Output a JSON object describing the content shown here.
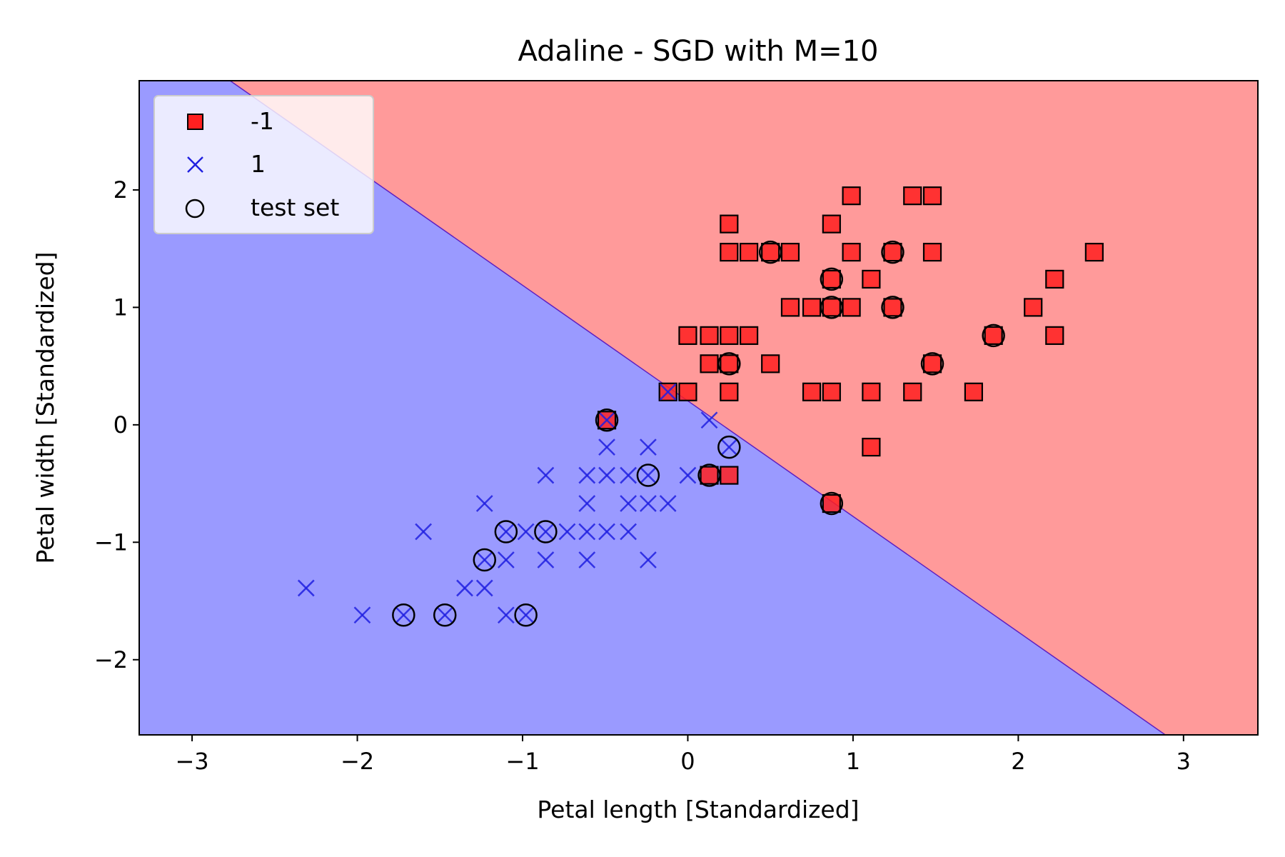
{
  "chart_data": {
    "type": "scatter",
    "title": "Adaline - SGD with M=10",
    "xlabel": "Petal length [Standardized]",
    "ylabel": "Petal width [Standardized]",
    "xlim": [
      -3.32,
      3.45
    ],
    "ylim": [
      -2.64,
      2.93
    ],
    "xticks": [
      -3,
      -2,
      -1,
      0,
      1,
      2,
      3
    ],
    "yticks": [
      -2,
      -1,
      0,
      1,
      2
    ],
    "xtick_labels": [
      "−3",
      "−2",
      "−1",
      "0",
      "1",
      "2",
      "3"
    ],
    "ytick_labels": [
      "−2",
      "−1",
      "0",
      "1",
      "2"
    ],
    "grid": false,
    "legend": {
      "position": "top-left",
      "entries": [
        "-1",
        "1",
        "test set"
      ]
    },
    "decision_regions": [
      {
        "class": "-1",
        "color": "#ff9a9a"
      },
      {
        "class": "1",
        "color": "#9a9aff"
      }
    ],
    "decision_boundary": [
      [
        -2.77,
        2.93
      ],
      [
        2.89,
        -2.64
      ]
    ],
    "series": [
      {
        "name": "-1",
        "marker": "square",
        "color": "#ff2020",
        "points": [
          [
            0.99,
            1.95
          ],
          [
            1.36,
            1.95
          ],
          [
            1.48,
            1.95
          ],
          [
            0.25,
            1.71
          ],
          [
            0.87,
            1.71
          ],
          [
            0.25,
            1.47
          ],
          [
            0.37,
            1.47
          ],
          [
            0.5,
            1.47
          ],
          [
            0.62,
            1.47
          ],
          [
            0.99,
            1.47
          ],
          [
            1.24,
            1.47
          ],
          [
            1.48,
            1.47
          ],
          [
            2.46,
            1.47
          ],
          [
            0.87,
            1.24
          ],
          [
            1.11,
            1.24
          ],
          [
            2.22,
            1.24
          ],
          [
            0.62,
            1.0
          ],
          [
            0.75,
            1.0
          ],
          [
            0.87,
            1.0
          ],
          [
            0.99,
            1.0
          ],
          [
            1.24,
            1.0
          ],
          [
            2.09,
            1.0
          ],
          [
            0.0,
            0.76
          ],
          [
            0.13,
            0.76
          ],
          [
            0.25,
            0.76
          ],
          [
            0.37,
            0.76
          ],
          [
            1.85,
            0.76
          ],
          [
            2.22,
            0.76
          ],
          [
            0.13,
            0.52
          ],
          [
            0.25,
            0.52
          ],
          [
            0.5,
            0.52
          ],
          [
            1.48,
            0.52
          ],
          [
            -0.12,
            0.28
          ],
          [
            0.0,
            0.28
          ],
          [
            0.25,
            0.28
          ],
          [
            0.75,
            0.28
          ],
          [
            0.87,
            0.28
          ],
          [
            1.11,
            0.28
          ],
          [
            1.36,
            0.28
          ],
          [
            1.73,
            0.28
          ],
          [
            -0.49,
            0.04
          ],
          [
            1.11,
            -0.19
          ],
          [
            0.13,
            -0.43
          ],
          [
            0.25,
            -0.43
          ],
          [
            0.87,
            -0.67
          ]
        ]
      },
      {
        "name": "1",
        "marker": "x",
        "color": "#2020e0",
        "points": [
          [
            -0.12,
            0.28
          ],
          [
            0.13,
            0.04
          ],
          [
            -0.49,
            0.04
          ],
          [
            -0.49,
            -0.19
          ],
          [
            -0.24,
            -0.19
          ],
          [
            0.25,
            -0.19
          ],
          [
            -0.86,
            -0.43
          ],
          [
            -0.61,
            -0.43
          ],
          [
            -0.49,
            -0.43
          ],
          [
            -0.36,
            -0.43
          ],
          [
            -0.24,
            -0.43
          ],
          [
            0.0,
            -0.43
          ],
          [
            -1.23,
            -0.67
          ],
          [
            -0.61,
            -0.67
          ],
          [
            -0.36,
            -0.67
          ],
          [
            -0.24,
            -0.67
          ],
          [
            -0.12,
            -0.67
          ],
          [
            -1.6,
            -0.91
          ],
          [
            -1.1,
            -0.91
          ],
          [
            -0.98,
            -0.91
          ],
          [
            -0.86,
            -0.91
          ],
          [
            -0.73,
            -0.91
          ],
          [
            -0.61,
            -0.91
          ],
          [
            -0.49,
            -0.91
          ],
          [
            -0.36,
            -0.91
          ],
          [
            -1.23,
            -1.15
          ],
          [
            -1.1,
            -1.15
          ],
          [
            -0.86,
            -1.15
          ],
          [
            -0.61,
            -1.15
          ],
          [
            -0.24,
            -1.15
          ],
          [
            -2.31,
            -1.39
          ],
          [
            -1.35,
            -1.39
          ],
          [
            -1.23,
            -1.39
          ],
          [
            -1.97,
            -1.62
          ],
          [
            -1.72,
            -1.62
          ],
          [
            -1.47,
            -1.62
          ],
          [
            -1.1,
            -1.62
          ],
          [
            -0.98,
            -1.62
          ]
        ]
      },
      {
        "name": "test set",
        "marker": "circle-open",
        "color": "#000000",
        "points": [
          [
            0.5,
            1.47
          ],
          [
            1.24,
            1.47
          ],
          [
            0.87,
            1.24
          ],
          [
            0.87,
            1.0
          ],
          [
            1.24,
            1.0
          ],
          [
            1.85,
            0.76
          ],
          [
            0.25,
            0.52
          ],
          [
            1.48,
            0.52
          ],
          [
            -0.49,
            0.04
          ],
          [
            0.25,
            -0.19
          ],
          [
            -0.24,
            -0.43
          ],
          [
            0.13,
            -0.43
          ],
          [
            0.87,
            -0.67
          ],
          [
            -1.1,
            -0.91
          ],
          [
            -0.86,
            -0.91
          ],
          [
            -1.23,
            -1.15
          ],
          [
            -1.72,
            -1.62
          ],
          [
            -1.47,
            -1.62
          ],
          [
            -0.98,
            -1.62
          ]
        ]
      }
    ]
  }
}
